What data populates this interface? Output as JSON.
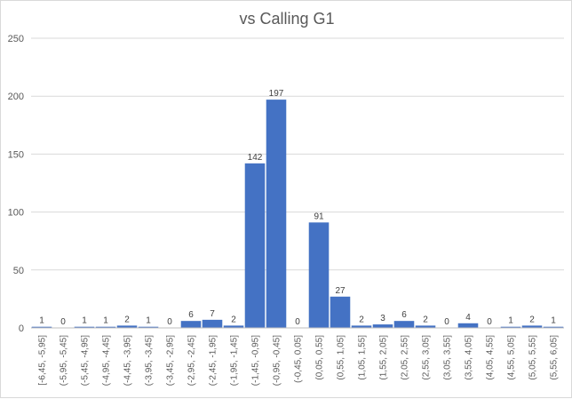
{
  "chart_data": {
    "type": "bar",
    "title": "vs Calling G1",
    "xlabel": "",
    "ylabel": "",
    "ylim": [
      0,
      250
    ],
    "yticks": [
      0,
      50,
      100,
      150,
      200,
      250
    ],
    "grid": true,
    "legend": "none",
    "bar_color": "#4472c4",
    "categories": [
      "[-6,45, -5,95]",
      "(-5,95, -5,45]",
      "(-5,45, -4,95]",
      "(-4,95, -4,45]",
      "(-4,45, -3,95]",
      "(-3,95, -3,45]",
      "(-3,45, -2,95]",
      "(-2,95, -2,45]",
      "(-2,45, -1,95]",
      "(-1,95, -1,45]",
      "(-1,45, -0,95]",
      "(-0,95, -0,45]",
      "(-0,45, 0,05]",
      "(0,05, 0,55]",
      "(0,55, 1,05]",
      "(1,05, 1,55]",
      "(1,55, 2,05]",
      "(2,05, 2,55]",
      "(2,55, 3,05]",
      "(3,05, 3,55]",
      "(3,55, 4,05]",
      "(4,05, 4,55]",
      "(4,55, 5,05]",
      "(5,05, 5,55]",
      "(5,55, 6,05]"
    ],
    "values": [
      1,
      0,
      1,
      1,
      2,
      1,
      0,
      6,
      7,
      2,
      142,
      197,
      0,
      91,
      27,
      2,
      3,
      6,
      2,
      0,
      4,
      0,
      1,
      2,
      1
    ]
  }
}
